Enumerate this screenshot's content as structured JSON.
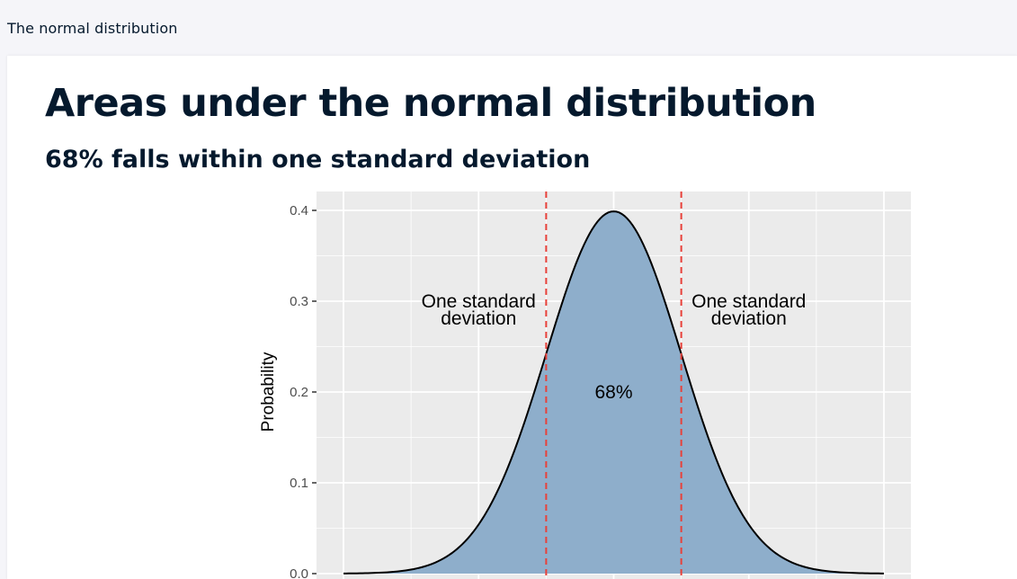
{
  "topbar": {
    "title": "The normal distribution"
  },
  "slide": {
    "title": "Areas under the normal distribution",
    "subtitle": "68% falls within one standard deviation"
  },
  "chart_data": {
    "type": "area",
    "distribution": "normal",
    "mean": 0,
    "sd": 1,
    "xlim": [
      -4,
      4
    ],
    "ylim": [
      0,
      0.4
    ],
    "ylabel": "Probability",
    "xlabel": "",
    "yticks": [
      "0.0",
      "0.1",
      "0.2",
      "0.3",
      "0.4"
    ],
    "vlines": [
      -1,
      1
    ],
    "grid": true,
    "fill_color": "#8eaecb",
    "curve_color": "#000000",
    "vline_color": "#e8413a",
    "panel_color": "#ebebeb",
    "annotations": [
      {
        "line1": "One standard",
        "line2": "deviation",
        "x": -2,
        "y": 0.3
      },
      {
        "line1": "One standard",
        "line2": "deviation",
        "x": 2,
        "y": 0.3
      },
      {
        "line1": "68%",
        "line2": "",
        "x": 0,
        "y": 0.2
      }
    ]
  }
}
